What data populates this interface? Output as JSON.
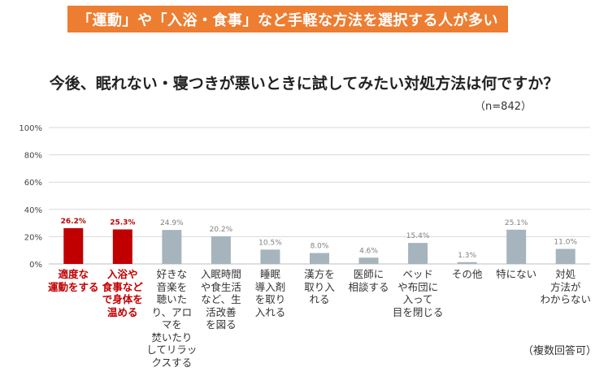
{
  "banner": "「運動」や「入浴・食事」など手軽な方法を選択する人が多い",
  "title": "今後、眠れない・寝つきが悪いときに試してみたい対処方法は何ですか？",
  "sample_size": "（n=842）",
  "footnote": "（複数回答可）",
  "colors": {
    "highlight": "#c00000",
    "normal": "#a6b4bd",
    "banner": "#ed7d31",
    "grid": "#d9d9d9"
  },
  "chart_data": {
    "type": "bar",
    "categories": [
      "適度な\n運動をする",
      "入浴や\n食事など\nで身体を\n温める",
      "好きな\n音楽を\n聴いた\nり、アロ\nマを\n焚いたり\nしてリラッ\nクスする",
      "入眠時間\nや食生活\nなど、生\n活改善\nを図る",
      "睡眠\n導入剤\nを取り\n入れる",
      "漢方を\n取り入\nれる",
      "医師に\n相談する",
      "ベッド\nや布団に\n入って\n目を閉じる",
      "その他",
      "特にない",
      "対処\n方法が\nわからない"
    ],
    "values": [
      26.2,
      25.3,
      24.9,
      20.2,
      10.5,
      8.0,
      4.6,
      15.4,
      1.3,
      25.1,
      11.0
    ],
    "value_labels": [
      "26.2%",
      "25.3%",
      "24.9%",
      "20.2%",
      "10.5%",
      "8.0%",
      "4.6%",
      "15.4%",
      "1.3%",
      "25.1%",
      "11.0%"
    ],
    "highlighted": [
      true,
      true,
      false,
      false,
      false,
      false,
      false,
      false,
      false,
      false,
      false
    ],
    "y_ticks": [
      0,
      20,
      40,
      60,
      80,
      100
    ],
    "y_tick_labels": [
      "0%",
      "20%",
      "40%",
      "60%",
      "80%",
      "100%"
    ],
    "ylim": [
      0,
      100
    ],
    "grid": true
  }
}
